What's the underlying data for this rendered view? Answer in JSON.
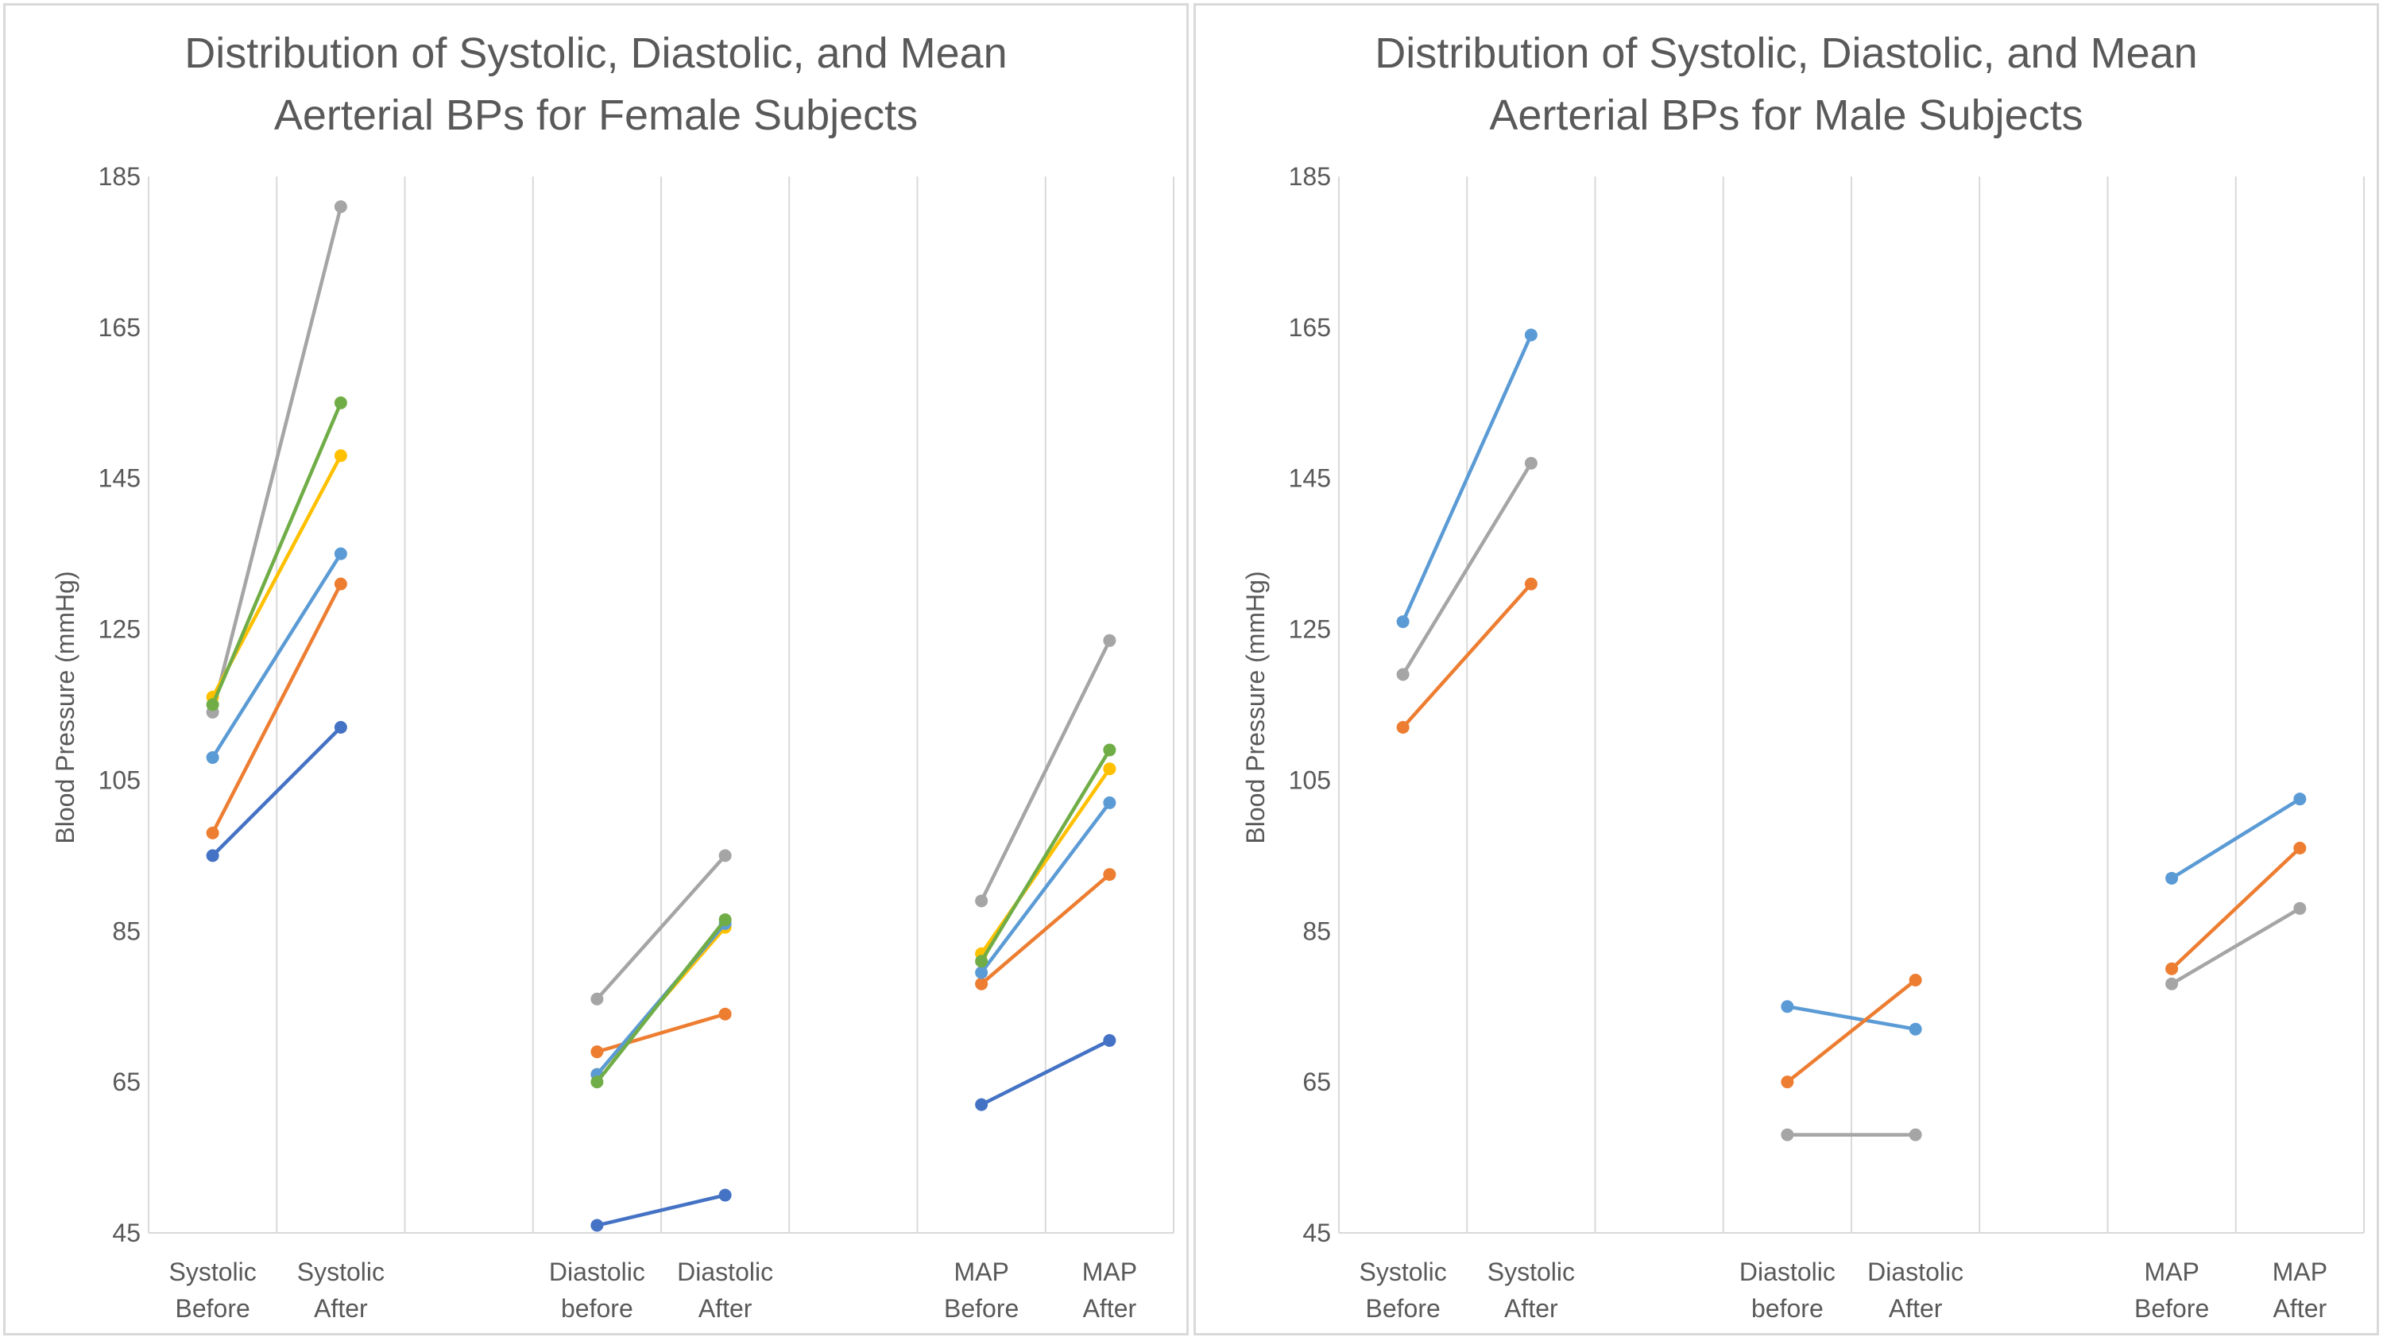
{
  "chart_data": [
    {
      "type": "line",
      "title_lines": [
        "Distribution of Systolic, Diastolic, and Mean",
        "Aerterial BPs for Female Subjects"
      ],
      "xlabel": "",
      "ylabel": "Blood Pressure (mmHg)",
      "ylim": [
        45,
        185
      ],
      "yticks": [
        45,
        65,
        85,
        105,
        125,
        145,
        165,
        185
      ],
      "grid": "vertical",
      "categories": [
        [
          "Systolic",
          "Before"
        ],
        [
          "Systolic",
          "After"
        ],
        [
          "",
          ""
        ],
        [
          "Diastolic",
          "before"
        ],
        [
          "Diastolic",
          "After"
        ],
        [
          "",
          ""
        ],
        [
          "MAP",
          "Before"
        ],
        [
          "MAP",
          "After"
        ]
      ],
      "pairs": [
        [
          0,
          1
        ],
        [
          3,
          4
        ],
        [
          6,
          7
        ]
      ],
      "series": [
        {
          "color": "#4472c4",
          "values": [
            95,
            112,
            null,
            46,
            50,
            null,
            62,
            70.5
          ]
        },
        {
          "color": "#ed7d31",
          "values": [
            98,
            131,
            null,
            69,
            74,
            null,
            78,
            92.5
          ]
        },
        {
          "color": "#a5a5a5",
          "values": [
            114,
            181,
            null,
            76,
            95,
            null,
            89,
            123.5
          ]
        },
        {
          "color": "#ffc000",
          "values": [
            116,
            148,
            null,
            66,
            85.5,
            null,
            82,
            106.5
          ]
        },
        {
          "color": "#5b9bd5",
          "values": [
            108,
            135,
            null,
            66,
            86,
            null,
            79.5,
            102
          ]
        },
        {
          "color": "#70ad47",
          "values": [
            115,
            155,
            null,
            65,
            86.5,
            null,
            81,
            109
          ]
        }
      ]
    },
    {
      "type": "line",
      "title_lines": [
        "Distribution of Systolic, Diastolic, and Mean",
        "Aerterial BPs for Male Subjects"
      ],
      "xlabel": "",
      "ylabel": "Blood Pressure (mmHg)",
      "ylim": [
        45,
        185
      ],
      "yticks": [
        45,
        65,
        85,
        105,
        125,
        145,
        165,
        185
      ],
      "grid": "vertical",
      "categories": [
        [
          "Systolic",
          "Before"
        ],
        [
          "Systolic",
          "After"
        ],
        [
          "",
          ""
        ],
        [
          "Diastolic",
          "before"
        ],
        [
          "Diastolic",
          "After"
        ],
        [
          "",
          ""
        ],
        [
          "MAP",
          "Before"
        ],
        [
          "MAP",
          "After"
        ]
      ],
      "pairs": [
        [
          0,
          1
        ],
        [
          3,
          4
        ],
        [
          6,
          7
        ]
      ],
      "series": [
        {
          "color": "#5b9bd5",
          "values": [
            126,
            164,
            null,
            75,
            72,
            null,
            92,
            102.5
          ]
        },
        {
          "color": "#ed7d31",
          "values": [
            112,
            131,
            null,
            65,
            78.5,
            null,
            80,
            96
          ]
        },
        {
          "color": "#a5a5a5",
          "values": [
            119,
            147,
            null,
            58,
            58,
            null,
            78,
            88
          ]
        }
      ]
    }
  ]
}
